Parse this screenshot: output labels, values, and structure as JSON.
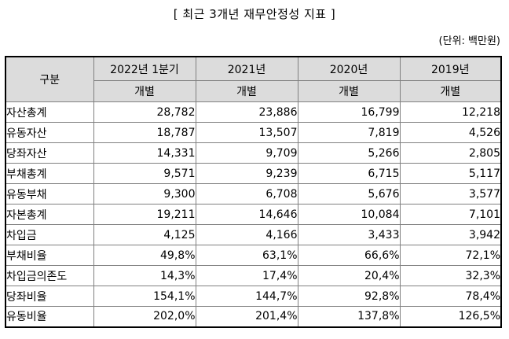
{
  "title": "[ 최근 3개년 재무안정성 지표 ]",
  "unit_label": "(단위: 백만원)",
  "colors": {
    "header_bg": "#dcdcdc",
    "grid_line": "#808080",
    "outer_border": "#000000",
    "text": "#000000",
    "background": "#ffffff"
  },
  "table": {
    "corner_header": "구분",
    "columns": [
      {
        "period": "2022년 1분기",
        "basis": "개별"
      },
      {
        "period": "2021년",
        "basis": "개별"
      },
      {
        "period": "2020년",
        "basis": "개별"
      },
      {
        "period": "2019년",
        "basis": "개별"
      }
    ],
    "rows": [
      {
        "label": "자산총계",
        "values": [
          "28,782",
          "23,886",
          "16,799",
          "12,218"
        ]
      },
      {
        "label": "유동자산",
        "values": [
          "18,787",
          "13,507",
          "7,819",
          "4,526"
        ]
      },
      {
        "label": "당좌자산",
        "values": [
          "14,331",
          "9,709",
          "5,266",
          "2,805"
        ]
      },
      {
        "label": "부채총계",
        "values": [
          "9,571",
          "9,239",
          "6,715",
          "5,117"
        ]
      },
      {
        "label": "유동부채",
        "values": [
          "9,300",
          "6,708",
          "5,676",
          "3,577"
        ]
      },
      {
        "label": "자본총계",
        "values": [
          "19,211",
          "14,646",
          "10,084",
          "7,101"
        ]
      },
      {
        "label": "차입금",
        "values": [
          "4,125",
          "4,166",
          "3,433",
          "3,942"
        ]
      },
      {
        "label": "부채비율",
        "values": [
          "49,8%",
          "63,1%",
          "66,6%",
          "72,1%"
        ]
      },
      {
        "label": "차입금의존도",
        "values": [
          "14,3%",
          "17,4%",
          "20,4%",
          "32,3%"
        ]
      },
      {
        "label": "당좌비율",
        "values": [
          "154,1%",
          "144,7%",
          "92,8%",
          "78,4%"
        ]
      },
      {
        "label": "유동비율",
        "values": [
          "202,0%",
          "201,4%",
          "137,8%",
          "126,5%"
        ]
      }
    ]
  }
}
